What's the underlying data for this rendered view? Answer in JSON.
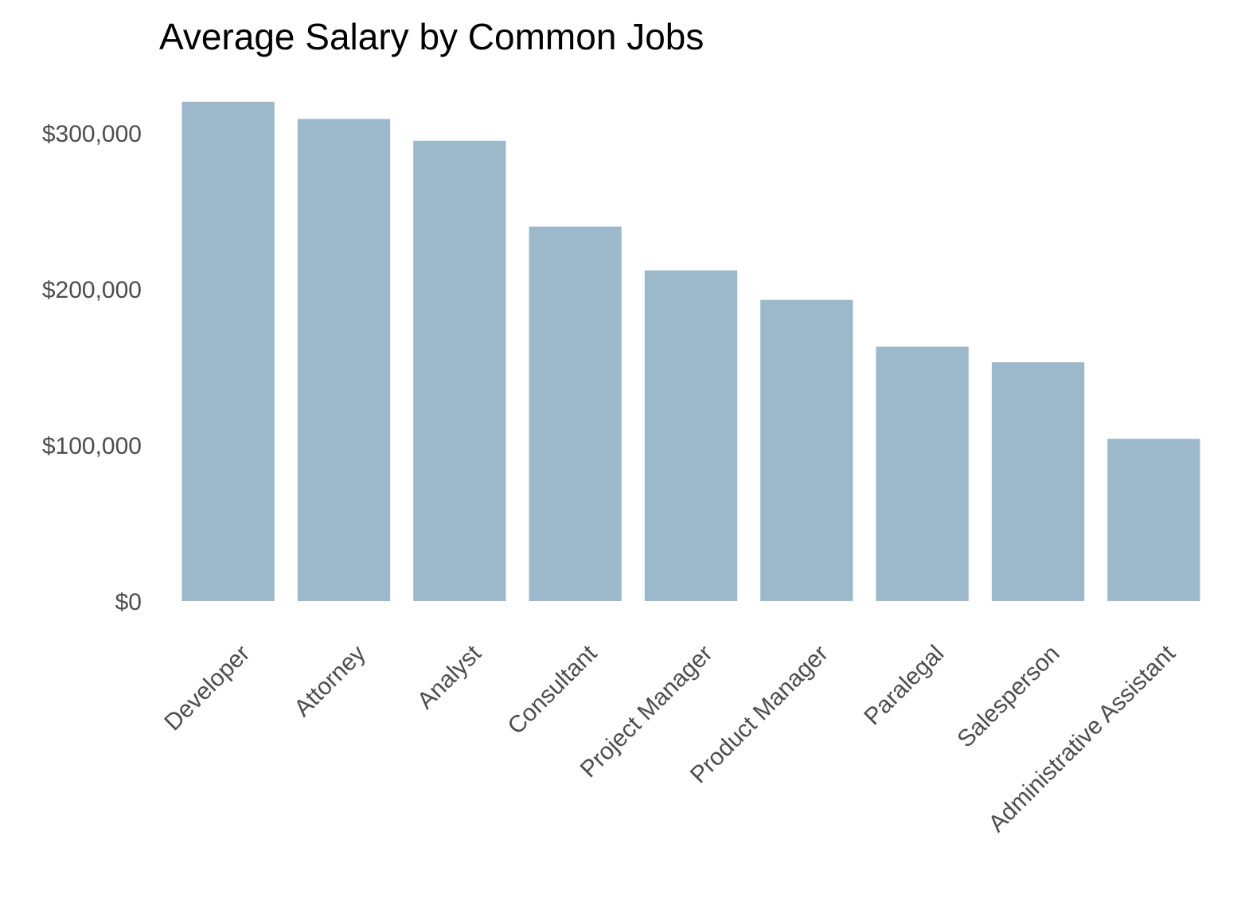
{
  "chart_data": {
    "type": "bar",
    "title": "Average Salary by Common Jobs",
    "xlabel": "",
    "ylabel": "",
    "categories": [
      "Developer",
      "Attorney",
      "Analyst",
      "Consultant",
      "Project Manager",
      "Product Manager",
      "Paralegal",
      "Salesperson",
      "Administrative Assistant"
    ],
    "values": [
      320000,
      309000,
      295000,
      240000,
      212000,
      193000,
      163000,
      153000,
      104000
    ],
    "ylim": [
      0,
      330000
    ],
    "yticks": [
      0,
      100000,
      200000,
      300000
    ],
    "ytick_labels": [
      "$0",
      "$100,000",
      "$200,000",
      "$300,000"
    ],
    "grid": false,
    "legend": "none"
  },
  "colors": {
    "bar": "#9cb9cb",
    "tick_text": "#4d4d4d",
    "title": "#000000"
  }
}
